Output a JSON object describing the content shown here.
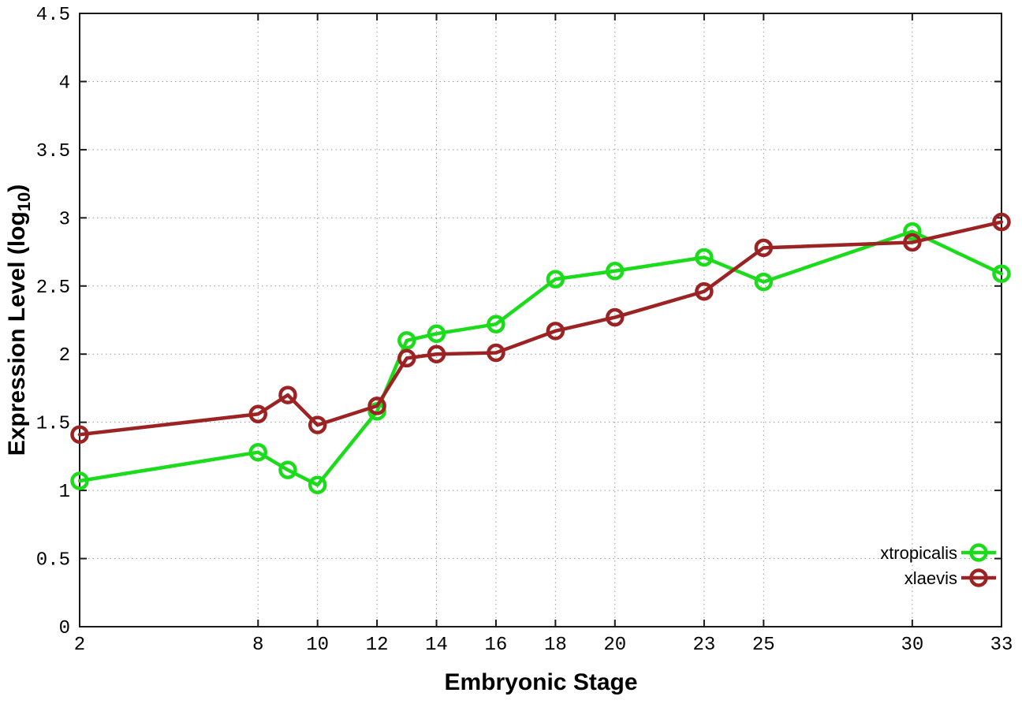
{
  "chart_data": {
    "type": "line",
    "title": "",
    "xlabel": "Embryonic Stage",
    "ylabel": "Expression Level (log10)",
    "ylabel_parts": {
      "main": "Expression Level (log",
      "sub": "10",
      "end": ")"
    },
    "x": [
      2,
      8,
      9,
      10,
      12,
      13,
      14,
      16,
      18,
      20,
      23,
      25,
      30,
      33
    ],
    "xticks": [
      2,
      8,
      10,
      12,
      14,
      16,
      18,
      20,
      23,
      25,
      30,
      33
    ],
    "yticks": [
      0,
      0.5,
      1,
      1.5,
      2,
      2.5,
      3,
      3.5,
      4,
      4.5
    ],
    "xlim": [
      2,
      33
    ],
    "ylim": [
      0,
      4.5
    ],
    "grid": true,
    "grid_style": "dotted",
    "legend_position": "bottom-right",
    "marker": "open-circle",
    "series": [
      {
        "name": "xtropicalis",
        "color": "#1bdc1b",
        "values": [
          1.07,
          1.28,
          1.15,
          1.04,
          1.58,
          2.1,
          2.15,
          2.22,
          2.55,
          2.61,
          2.71,
          2.53,
          2.9,
          2.59
        ]
      },
      {
        "name": "xlaevis",
        "color": "#9c2323",
        "values": [
          1.41,
          1.56,
          1.7,
          1.48,
          1.62,
          1.97,
          2.0,
          2.01,
          2.17,
          2.27,
          2.46,
          2.78,
          2.82,
          2.97
        ]
      }
    ]
  },
  "colors": {
    "background": "#ffffff",
    "grid": "#9b9b9b",
    "axis": "#1a1a1a",
    "text": "#000000"
  }
}
